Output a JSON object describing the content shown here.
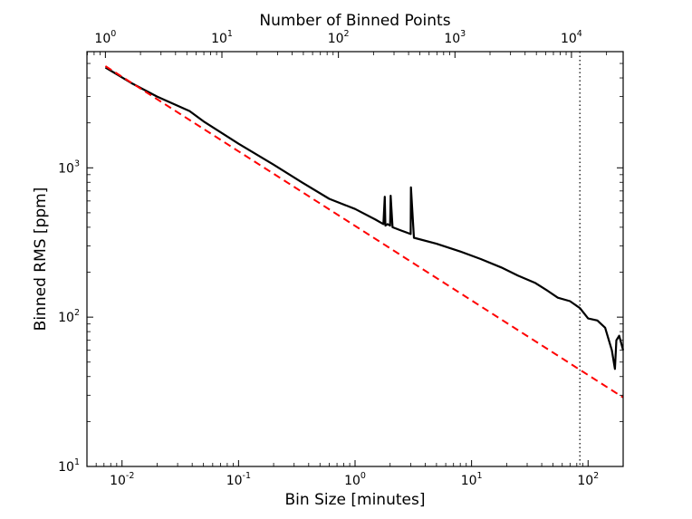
{
  "chart_data": {
    "type": "line",
    "xscale": "log",
    "yscale": "log",
    "xlabel": "Bin Size [minutes]",
    "ylabel": "Binned RMS [ppm]",
    "top_xlabel": "Number of Binned Points",
    "xlim": [
      0.005,
      200
    ],
    "ylim": [
      10,
      6000
    ],
    "xticks": [
      {
        "value": 0.01,
        "base": "10",
        "exp": "-2"
      },
      {
        "value": 0.1,
        "base": "10",
        "exp": "-1"
      },
      {
        "value": 1,
        "base": "10",
        "exp": "0"
      },
      {
        "value": 10,
        "base": "10",
        "exp": "1"
      },
      {
        "value": 100,
        "base": "10",
        "exp": "2"
      }
    ],
    "top_xticks": [
      {
        "value": 1,
        "base": "10",
        "exp": "0"
      },
      {
        "value": 10,
        "base": "10",
        "exp": "1"
      },
      {
        "value": 100,
        "base": "10",
        "exp": "2"
      },
      {
        "value": 1000,
        "base": "10",
        "exp": "3"
      },
      {
        "value": 10000,
        "base": "10",
        "exp": "4"
      }
    ],
    "top_axis_points_per_minute": 138.9,
    "yticks": [
      {
        "value": 10,
        "base": "10",
        "exp": "1"
      },
      {
        "value": 100,
        "base": "10",
        "exp": "2"
      },
      {
        "value": 1000,
        "base": "10",
        "exp": "3"
      }
    ],
    "grid": false,
    "series": [
      {
        "style": "solid",
        "color": "#000000",
        "x": [
          0.0072,
          0.012,
          0.02,
          0.038,
          0.05,
          0.1,
          0.2,
          0.35,
          0.6,
          1.0,
          1.5,
          1.75,
          1.8,
          1.82,
          1.9,
          2.0,
          2.02,
          2.1,
          2.5,
          3.0,
          3.02,
          3.2,
          5,
          8,
          12,
          18,
          25,
          35,
          45,
          55,
          70,
          85,
          100,
          120,
          140,
          160,
          170,
          175,
          185,
          200
        ],
        "y": [
          4700,
          3700,
          3000,
          2400,
          2050,
          1450,
          1050,
          800,
          620,
          530,
          450,
          420,
          640,
          410,
          420,
          410,
          650,
          400,
          380,
          360,
          740,
          340,
          310,
          275,
          245,
          215,
          190,
          170,
          150,
          135,
          128,
          115,
          98,
          95,
          85,
          60,
          45,
          70,
          75,
          60
        ]
      },
      {
        "style": "dashed",
        "color": "#ff0000",
        "x": [
          0.0072,
          200
        ],
        "y": [
          4800,
          29
        ]
      }
    ],
    "vline": {
      "x": 85,
      "style": "dotted",
      "color": "#000000"
    }
  }
}
